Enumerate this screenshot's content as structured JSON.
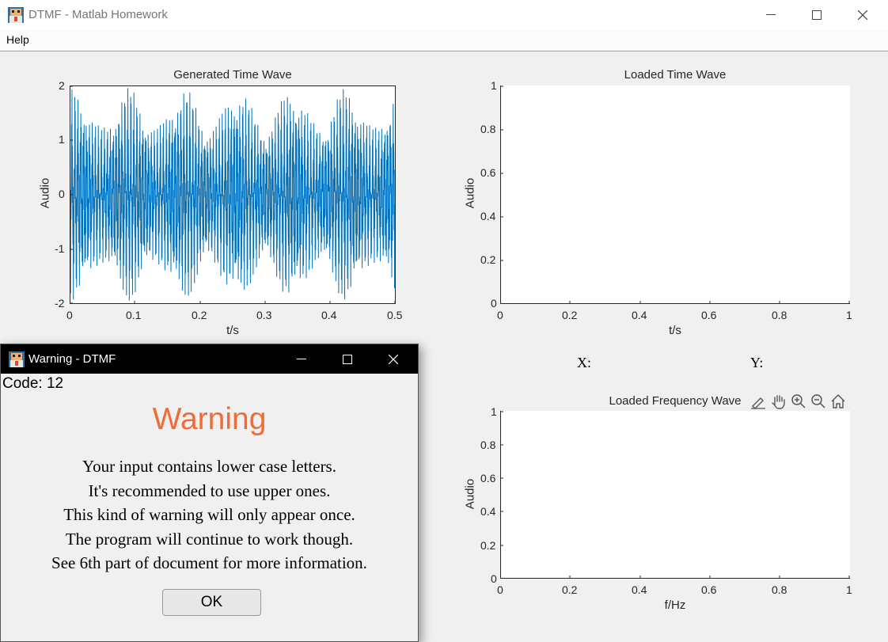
{
  "window": {
    "title": "DTMF - Matlab Homework"
  },
  "menu": {
    "help": "Help"
  },
  "plots": {
    "generated": {
      "title": "Generated Time Wave",
      "xlabel": "t/s",
      "ylabel": "Audio",
      "xticks": [
        "0",
        "0.1",
        "0.2",
        "0.3",
        "0.4",
        "0.5"
      ],
      "yticks": [
        "2",
        "1",
        "0",
        "-1",
        "-2"
      ],
      "line_color": "#0072bd"
    },
    "loaded_time": {
      "title": "Loaded Time Wave",
      "xlabel": "t/s",
      "ylabel": "Audio",
      "xticks": [
        "0",
        "0.2",
        "0.4",
        "0.6",
        "0.8",
        "1"
      ],
      "yticks": [
        "1",
        "0.8",
        "0.6",
        "0.4",
        "0.2",
        "0"
      ]
    },
    "loaded_freq": {
      "title": "Loaded Frequency Wave",
      "xlabel": "f/Hz",
      "ylabel": "Audio",
      "xticks": [
        "0",
        "0.2",
        "0.4",
        "0.6",
        "0.8",
        "1"
      ],
      "yticks": [
        "1",
        "0.8",
        "0.6",
        "0.4",
        "0.2",
        "0"
      ]
    }
  },
  "coords": {
    "x_label": "X:",
    "y_label": "Y:"
  },
  "toolbar_icons": [
    "brush-icon",
    "pan-hand-icon",
    "zoom-in-icon",
    "zoom-out-icon",
    "home-icon"
  ],
  "dialog": {
    "title": "Warning - DTMF",
    "code": "Code: 12",
    "heading": "Warning",
    "heading_color": "#f26a36",
    "lines": [
      "Your input contains lower case letters.",
      "It's recommended to use upper ones.",
      "This kind of warning will only appear once.",
      "The program will continue to work though.",
      "See 6th part of document for more information."
    ],
    "ok_label": "OK"
  }
}
